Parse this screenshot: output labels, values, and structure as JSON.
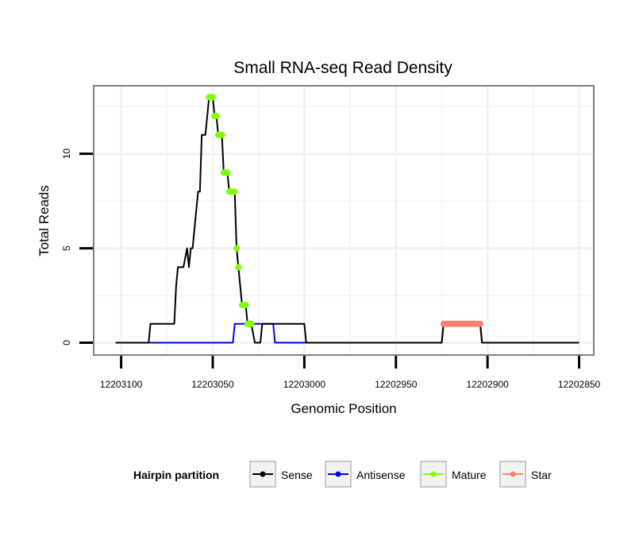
{
  "chart_data": {
    "type": "line",
    "title": "Small RNA-seq Read Density",
    "xlabel": "Genomic Position",
    "ylabel": "Total Reads",
    "x_reversed": true,
    "xlim": [
      12203115,
      12202842
    ],
    "ylim": [
      -0.65,
      13.6
    ],
    "x_ticks": [
      12203100,
      12203050,
      12203000,
      12202950,
      12202900,
      12202850
    ],
    "x_tick_labels": [
      "12203100",
      "12203050",
      "12203000",
      "12202950",
      "12202900",
      "12202850"
    ],
    "y_ticks": [
      0,
      5,
      10
    ],
    "y_tick_labels": [
      "0",
      "5",
      "10"
    ],
    "grid": true,
    "legend": {
      "title": "Hairpin partition",
      "position": "bottom",
      "entries": [
        {
          "name": "Sense",
          "color": "#000000"
        },
        {
          "name": "Antisense",
          "color": "#0000ff"
        },
        {
          "name": "Mature",
          "color": "#7fff00"
        },
        {
          "name": "Star",
          "color": "#fa8072"
        }
      ]
    },
    "series": [
      {
        "name": "Sense",
        "color": "#000000",
        "kind": "line",
        "points": [
          [
            12203103,
            0
          ],
          [
            12203085,
            0
          ],
          [
            12203084,
            1
          ],
          [
            12203072,
            1
          ],
          [
            12203071,
            1
          ],
          [
            12203070,
            3
          ],
          [
            12203069,
            4
          ],
          [
            12203066,
            4
          ],
          [
            12203064,
            5
          ],
          [
            12203063,
            4
          ],
          [
            12203062,
            5
          ],
          [
            12203061,
            5
          ],
          [
            12203058,
            8
          ],
          [
            12203057,
            8
          ],
          [
            12203056,
            11
          ],
          [
            12203054,
            11
          ],
          [
            12203052,
            13
          ],
          [
            12203050,
            13
          ],
          [
            12203049,
            12
          ],
          [
            12203048,
            12
          ],
          [
            12203047,
            11
          ],
          [
            12203045,
            11
          ],
          [
            12203044,
            9
          ],
          [
            12203042,
            9
          ],
          [
            12203041,
            8
          ],
          [
            12203038,
            8
          ],
          [
            12203037,
            5
          ],
          [
            12203036,
            4
          ],
          [
            12203034,
            2
          ],
          [
            12203032,
            2
          ],
          [
            12203031,
            1
          ],
          [
            12203029,
            1
          ],
          [
            12203027,
            0
          ],
          [
            12203024,
            0
          ],
          [
            12203023,
            1
          ],
          [
            12203016,
            1
          ],
          [
            12203000,
            1
          ],
          [
            12202999,
            0
          ],
          [
            12202925,
            0
          ],
          [
            12202924,
            1
          ],
          [
            12202904,
            1
          ],
          [
            12202903,
            0
          ],
          [
            12202850,
            0
          ]
        ]
      },
      {
        "name": "Antisense",
        "color": "#0000ff",
        "kind": "line",
        "points": [
          [
            12203103,
            0
          ],
          [
            12203039,
            0
          ],
          [
            12203038,
            1
          ],
          [
            12203017,
            1
          ],
          [
            12203016,
            0
          ],
          [
            12202925,
            0
          ],
          [
            12202924,
            1
          ],
          [
            12202904,
            1
          ],
          [
            12202903,
            0
          ],
          [
            12202850,
            0
          ]
        ]
      },
      {
        "name": "Mature",
        "color": "#7fff00",
        "kind": "points",
        "points": [
          [
            12203052,
            13
          ],
          [
            12203051.5,
            13
          ],
          [
            12203051,
            13
          ],
          [
            12203050.5,
            13
          ],
          [
            12203050,
            13
          ],
          [
            12203049,
            12
          ],
          [
            12203048,
            12
          ],
          [
            12203047,
            11
          ],
          [
            12203046,
            11
          ],
          [
            12203045,
            11
          ],
          [
            12203044,
            9
          ],
          [
            12203043,
            9
          ],
          [
            12203042,
            9
          ],
          [
            12203041,
            8
          ],
          [
            12203040,
            8
          ],
          [
            12203039,
            8
          ],
          [
            12203038,
            8
          ],
          [
            12203037,
            5
          ],
          [
            12203036,
            4
          ],
          [
            12203034,
            2
          ],
          [
            12203033,
            2
          ],
          [
            12203032,
            2
          ],
          [
            12203031,
            1
          ],
          [
            12203030,
            1
          ],
          [
            12203029,
            1
          ]
        ]
      },
      {
        "name": "Star",
        "color": "#fa8072",
        "kind": "points",
        "points": [
          [
            12202924,
            1
          ],
          [
            12202923,
            1
          ],
          [
            12202922,
            1
          ],
          [
            12202921,
            1
          ],
          [
            12202920,
            1
          ],
          [
            12202919,
            1
          ],
          [
            12202918,
            1
          ],
          [
            12202917,
            1
          ],
          [
            12202916,
            1
          ],
          [
            12202915,
            1
          ],
          [
            12202914,
            1
          ],
          [
            12202913,
            1
          ],
          [
            12202912,
            1
          ],
          [
            12202911,
            1
          ],
          [
            12202910,
            1
          ],
          [
            12202909,
            1
          ],
          [
            12202908,
            1
          ],
          [
            12202907,
            1
          ],
          [
            12202906,
            1
          ],
          [
            12202905,
            1
          ],
          [
            12202904,
            1
          ]
        ]
      }
    ]
  }
}
